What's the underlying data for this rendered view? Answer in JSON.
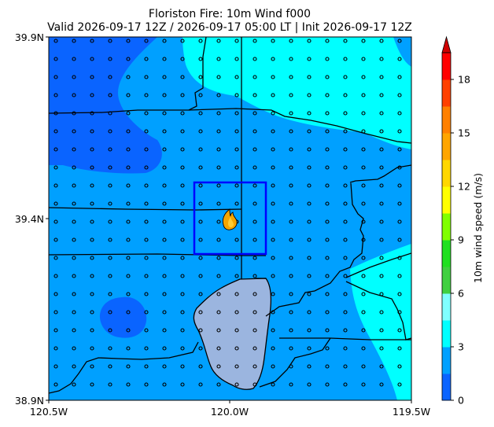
{
  "title": {
    "line1": "Floriston Fire: 10m Wind f000",
    "line2": "Valid 2026-09-17 12Z / 2026-09-17 05:00 LT | Init 2026-09-17 12Z"
  },
  "axes": {
    "x_ticks": [
      "120.5W",
      "120.0W",
      "119.5W"
    ],
    "y_ticks": [
      "39.9N",
      "39.4N",
      "38.9N"
    ],
    "x_range": [
      -120.5,
      -119.5
    ],
    "y_range": [
      38.9,
      39.9
    ]
  },
  "colorbar": {
    "label": "10m wind speed (m/s)",
    "ticks": [
      "0",
      "3",
      "6",
      "9",
      "12",
      "15",
      "18"
    ],
    "levels": [
      0,
      1.5,
      3,
      4.5,
      6,
      7.5,
      9,
      10.5,
      12,
      13.5,
      15,
      16.5,
      18,
      19.5
    ],
    "colors": [
      "#0a64ff",
      "#00a0ff",
      "#00ffff",
      "#80ffff",
      "#40d040",
      "#20e020",
      "#80ff00",
      "#ffff00",
      "#ffd700",
      "#ffa500",
      "#ff8000",
      "#ff4000",
      "#ff0000"
    ],
    "extend": "max"
  },
  "map": {
    "fire_box_color": "#0000ff",
    "fire_marker": "flame-icon",
    "lake_color": "#9bb5df",
    "border_color": "#000000",
    "station_marker": "circle"
  }
}
